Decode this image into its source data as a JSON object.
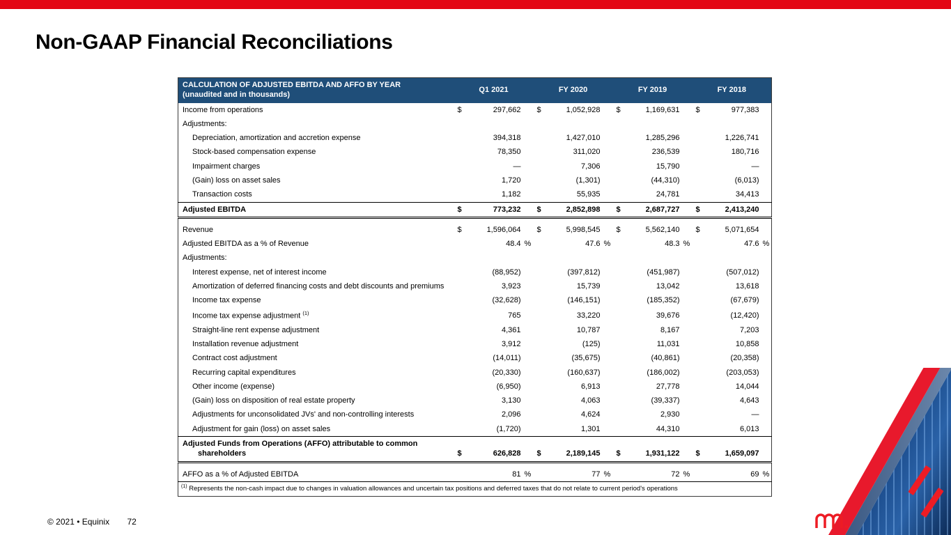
{
  "slide": {
    "title": "Non-GAAP Financial Reconciliations",
    "accent_color": "#e30613",
    "header_color": "#1f4e79",
    "footer": {
      "copyright": "© 2021 • Equinix",
      "page_number": "72"
    }
  },
  "table": {
    "title_line1": "CALCULATION OF ADJUSTED EBITDA AND AFFO BY YEAR",
    "title_line2": "(unaudited and in thousands)",
    "columns": [
      "Q1 2021",
      "FY 2020",
      "FY 2019",
      "FY 2018"
    ],
    "rows": [
      {
        "label": "Income from operations",
        "indent": 0,
        "dollar": true,
        "values": [
          "297,662",
          "1,052,928",
          "1,169,631",
          "977,383"
        ]
      },
      {
        "label": "Adjustments:",
        "indent": 0,
        "values": [
          "",
          "",
          "",
          ""
        ]
      },
      {
        "label": "Depreciation, amortization and accretion expense",
        "indent": 1,
        "values": [
          "394,318",
          "1,427,010",
          "1,285,296",
          "1,226,741"
        ]
      },
      {
        "label": "Stock-based compensation expense",
        "indent": 1,
        "values": [
          "78,350",
          "311,020",
          "236,539",
          "180,716"
        ]
      },
      {
        "label": "Impairment charges",
        "indent": 1,
        "values": [
          "—",
          "7,306",
          "15,790",
          "—"
        ]
      },
      {
        "label": "(Gain) loss on asset sales",
        "indent": 1,
        "values": [
          "1,720",
          "(1,301)",
          "(44,310)",
          "(6,013)"
        ]
      },
      {
        "label": "Transaction costs",
        "indent": 1,
        "values": [
          "1,182",
          "55,935",
          "24,781",
          "34,413"
        ]
      },
      {
        "label": "Adjusted EBITDA",
        "indent": 0,
        "dollar": true,
        "style": "total",
        "values": [
          "773,232",
          "2,852,898",
          "2,687,727",
          "2,413,240"
        ]
      },
      {
        "label": "Revenue",
        "indent": 0,
        "dollar": true,
        "values": [
          "1,596,064",
          "5,998,545",
          "5,562,140",
          "5,071,654"
        ]
      },
      {
        "label": "Adjusted EBITDA as a % of Revenue",
        "indent": 0,
        "percent": true,
        "values": [
          "48.4",
          "47.6",
          "48.3",
          "47.6"
        ]
      },
      {
        "label": "Adjustments:",
        "indent": 0,
        "values": [
          "",
          "",
          "",
          ""
        ]
      },
      {
        "label": "Interest expense, net of interest income",
        "indent": 1,
        "values": [
          "(88,952)",
          "(397,812)",
          "(451,987)",
          "(507,012)"
        ]
      },
      {
        "label": "Amortization of deferred financing costs and debt discounts and premiums",
        "indent": 1,
        "values": [
          "3,923",
          "15,739",
          "13,042",
          "13,618"
        ]
      },
      {
        "label": "Income tax expense",
        "indent": 1,
        "values": [
          "(32,628)",
          "(146,151)",
          "(185,352)",
          "(67,679)"
        ]
      },
      {
        "label": "Income tax expense adjustment",
        "sup": "(1)",
        "indent": 1,
        "values": [
          "765",
          "33,220",
          "39,676",
          "(12,420)"
        ]
      },
      {
        "label": "Straight-line rent expense adjustment",
        "indent": 1,
        "values": [
          "4,361",
          "10,787",
          "8,167",
          "7,203"
        ]
      },
      {
        "label": "Installation revenue adjustment",
        "indent": 1,
        "values": [
          "3,912",
          "(125)",
          "11,031",
          "10,858"
        ]
      },
      {
        "label": "Contract cost adjustment",
        "indent": 1,
        "values": [
          "(14,011)",
          "(35,675)",
          "(40,861)",
          "(20,358)"
        ]
      },
      {
        "label": "Recurring capital expenditures",
        "indent": 1,
        "values": [
          "(20,330)",
          "(160,637)",
          "(186,002)",
          "(203,053)"
        ]
      },
      {
        "label": "Other income (expense)",
        "indent": 1,
        "values": [
          "(6,950)",
          "6,913",
          "27,778",
          "14,044"
        ]
      },
      {
        "label": "(Gain) loss on disposition of real estate property",
        "indent": 1,
        "values": [
          "3,130",
          "4,063",
          "(39,337)",
          "4,643"
        ]
      },
      {
        "label": "Adjustments for unconsolidated JVs' and non-controlling interests",
        "indent": 1,
        "values": [
          "2,096",
          "4,624",
          "2,930",
          "—"
        ]
      },
      {
        "label": "Adjustment for gain (loss) on asset sales",
        "indent": 1,
        "values": [
          "(1,720)",
          "1,301",
          "44,310",
          "6,013"
        ]
      },
      {
        "label": "Adjusted Funds from Operations (AFFO) attributable to common shareholders",
        "indent": 0,
        "dollar": true,
        "style": "total",
        "values": [
          "626,828",
          "2,189,145",
          "1,931,122",
          "1,659,097"
        ]
      },
      {
        "label": "AFFO as a % of Adjusted EBITDA",
        "indent": 0,
        "percent": true,
        "values": [
          "81",
          "77",
          "72",
          "69"
        ]
      }
    ],
    "footnote_sup": "(1)",
    "footnote": "Represents the non-cash impact due to changes in valuation allowances and uncertain tax positions and deferred taxes that do not relate to current period's operations"
  }
}
